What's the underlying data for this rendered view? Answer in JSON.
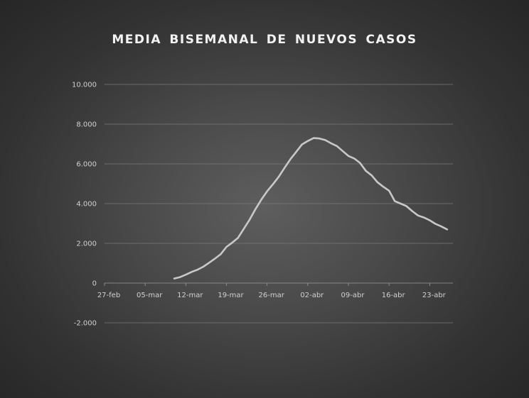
{
  "chart_data": {
    "type": "line",
    "title": "MEDIA BISEMANAL DE NUEVOS CASOS",
    "xlabel": "",
    "ylabel": "",
    "x_tick_labels": [
      "27-feb",
      "05-mar",
      "12-mar",
      "19-mar",
      "26-mar",
      "02-abr",
      "09-abr",
      "16-abr",
      "23-abr"
    ],
    "y_tick_labels": [
      "10.000",
      "8.000",
      "6.000",
      "4.000",
      "2.000",
      "0",
      "-2.000"
    ],
    "y_ticks": [
      10000,
      8000,
      6000,
      4000,
      2000,
      0,
      -2000
    ],
    "ylim": [
      -2000,
      10000
    ],
    "xlim": [
      "2020-02-27",
      "2020-04-27"
    ],
    "grid": true,
    "legend": "none",
    "line_color": "#c8c8c8",
    "series": [
      {
        "x": [
          "2020-03-10",
          "2020-03-11",
          "2020-03-12",
          "2020-03-13",
          "2020-03-14",
          "2020-03-15",
          "2020-03-16",
          "2020-03-17",
          "2020-03-18",
          "2020-03-19",
          "2020-03-20",
          "2020-03-21",
          "2020-03-22",
          "2020-03-23",
          "2020-03-24",
          "2020-03-25",
          "2020-03-26",
          "2020-03-27",
          "2020-03-28",
          "2020-03-29",
          "2020-03-30",
          "2020-03-31",
          "2020-04-01",
          "2020-04-02",
          "2020-04-03",
          "2020-04-04",
          "2020-04-05",
          "2020-04-06",
          "2020-04-07",
          "2020-04-08",
          "2020-04-09",
          "2020-04-10",
          "2020-04-11",
          "2020-04-12",
          "2020-04-13",
          "2020-04-14",
          "2020-04-15",
          "2020-04-16",
          "2020-04-17",
          "2020-04-18",
          "2020-04-19",
          "2020-04-20",
          "2020-04-21",
          "2020-04-22",
          "2020-04-23",
          "2020-04-24",
          "2020-04-25",
          "2020-04-26"
        ],
        "values": [
          230,
          300,
          420,
          560,
          670,
          820,
          1020,
          1230,
          1450,
          1820,
          2040,
          2280,
          2740,
          3200,
          3720,
          4200,
          4620,
          4970,
          5350,
          5800,
          6230,
          6600,
          6980,
          7150,
          7300,
          7280,
          7200,
          7040,
          6900,
          6650,
          6400,
          6270,
          6050,
          5650,
          5420,
          5080,
          4850,
          4650,
          4120,
          4000,
          3870,
          3620,
          3400,
          3300,
          3160,
          2980,
          2850,
          2700
        ]
      }
    ]
  }
}
